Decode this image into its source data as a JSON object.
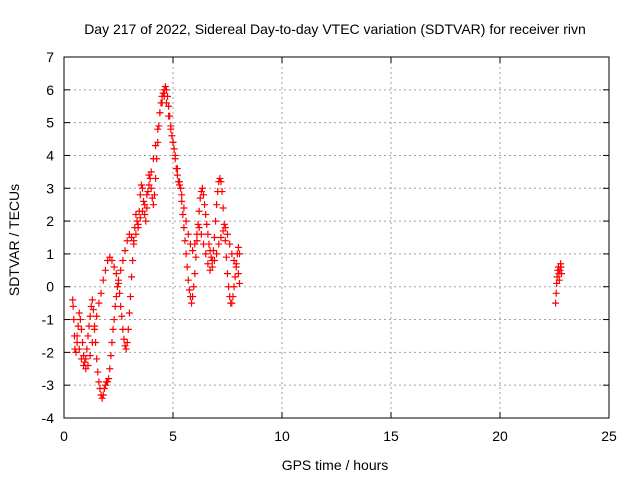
{
  "chart_data": {
    "type": "scatter",
    "title": "Day 217 of 2022, Sidereal Day-to-day VTEC variation (SDTVAR) for receiver rivn",
    "xlabel": "GPS time / hours",
    "ylabel": "SDTVAR / TECUs",
    "xlim": [
      0,
      25
    ],
    "ylim": [
      -4,
      7
    ],
    "x_ticks": [
      "0",
      "5",
      "10",
      "15",
      "20",
      "25"
    ],
    "x_tick_values": [
      0,
      5,
      10,
      15,
      20,
      25
    ],
    "y_ticks": [
      "-4",
      "-3",
      "-2",
      "-1",
      "0",
      "1",
      "2",
      "3",
      "4",
      "5",
      "6",
      "7"
    ],
    "y_tick_values": [
      -4,
      -3,
      -2,
      -1,
      0,
      1,
      2,
      3,
      4,
      5,
      6,
      7
    ],
    "grid": true,
    "marker": "plus",
    "color": "#ff0000",
    "series": [
      {
        "points": [
          [
            0.4,
            -0.4
          ],
          [
            0.42,
            -0.6
          ],
          [
            0.45,
            -1.0
          ],
          [
            0.48,
            -1.5
          ],
          [
            0.5,
            -1.9
          ],
          [
            0.55,
            -2.0
          ],
          [
            0.6,
            -1.7
          ],
          [
            0.65,
            -1.2
          ],
          [
            0.7,
            -0.8
          ],
          [
            0.75,
            -1.0
          ],
          [
            0.8,
            -1.3
          ],
          [
            0.85,
            -1.7
          ],
          [
            0.9,
            -2.1
          ],
          [
            0.95,
            -2.3
          ],
          [
            1.0,
            -2.2
          ],
          [
            1.05,
            -1.9
          ],
          [
            1.1,
            -1.5
          ],
          [
            1.15,
            -1.2
          ],
          [
            1.2,
            -0.9
          ],
          [
            1.25,
            -0.6
          ],
          [
            1.3,
            -0.4
          ],
          [
            1.35,
            -0.7
          ],
          [
            1.4,
            -1.2
          ],
          [
            1.45,
            -1.7
          ],
          [
            1.5,
            -2.2
          ],
          [
            1.55,
            -2.6
          ],
          [
            1.6,
            -2.9
          ],
          [
            1.65,
            -3.1
          ],
          [
            1.7,
            -3.3
          ],
          [
            1.75,
            -3.4
          ],
          [
            1.8,
            -3.3
          ],
          [
            1.85,
            -3.1
          ],
          [
            1.9,
            -3.0
          ],
          [
            1.95,
            -2.9
          ],
          [
            2.0,
            -2.9
          ],
          [
            2.05,
            -2.8
          ],
          [
            2.1,
            -2.5
          ],
          [
            2.15,
            -2.1
          ],
          [
            2.2,
            -1.7
          ],
          [
            2.25,
            -1.3
          ],
          [
            2.3,
            -1.0
          ],
          [
            2.35,
            -0.6
          ],
          [
            2.4,
            -0.3
          ],
          [
            2.45,
            0.0
          ],
          [
            2.5,
            0.1
          ],
          [
            2.55,
            -0.2
          ],
          [
            2.6,
            -0.6
          ],
          [
            2.65,
            -0.9
          ],
          [
            2.7,
            -1.3
          ],
          [
            2.75,
            -1.6
          ],
          [
            2.8,
            -1.8
          ],
          [
            2.85,
            -1.9
          ],
          [
            2.9,
            -1.7
          ],
          [
            2.95,
            -1.3
          ],
          [
            3.0,
            -0.8
          ],
          [
            3.05,
            -0.3
          ],
          [
            3.1,
            0.3
          ],
          [
            3.15,
            0.8
          ],
          [
            3.2,
            1.3
          ],
          [
            3.25,
            1.8
          ],
          [
            3.3,
            2.2
          ],
          [
            3.35,
            2.0
          ],
          [
            3.4,
            1.8
          ],
          [
            3.45,
            2.3
          ],
          [
            3.5,
            2.8
          ],
          [
            3.55,
            3.1
          ],
          [
            3.6,
            3.0
          ],
          [
            3.65,
            2.6
          ],
          [
            3.7,
            2.2
          ],
          [
            3.75,
            2.0
          ],
          [
            3.8,
            2.4
          ],
          [
            3.85,
            2.9
          ],
          [
            3.9,
            3.4
          ],
          [
            3.95,
            3.3
          ],
          [
            4.0,
            3.0
          ],
          [
            4.05,
            2.7
          ],
          [
            4.1,
            2.5
          ],
          [
            4.15,
            2.8
          ],
          [
            4.2,
            3.3
          ],
          [
            4.25,
            3.9
          ],
          [
            4.3,
            4.4
          ],
          [
            4.35,
            4.9
          ],
          [
            4.4,
            5.3
          ],
          [
            4.45,
            5.6
          ],
          [
            4.5,
            5.8
          ],
          [
            4.55,
            5.9
          ],
          [
            4.6,
            6.0
          ],
          [
            4.65,
            6.1
          ],
          [
            4.7,
            6.0
          ],
          [
            4.75,
            5.8
          ],
          [
            4.8,
            5.5
          ],
          [
            4.85,
            5.2
          ],
          [
            4.9,
            4.9
          ],
          [
            4.95,
            4.6
          ],
          [
            5.0,
            4.4
          ],
          [
            5.05,
            4.2
          ],
          [
            5.1,
            3.9
          ],
          [
            5.15,
            3.6
          ],
          [
            5.2,
            3.4
          ],
          [
            5.25,
            3.2
          ],
          [
            5.3,
            3.1
          ],
          [
            5.35,
            3.0
          ],
          [
            5.4,
            2.6
          ],
          [
            5.45,
            2.2
          ],
          [
            5.5,
            1.8
          ],
          [
            5.55,
            1.4
          ],
          [
            5.6,
            1.0
          ],
          [
            5.65,
            0.6
          ],
          [
            5.7,
            0.2
          ],
          [
            5.75,
            -0.1
          ],
          [
            5.8,
            -0.3
          ],
          [
            5.85,
            -0.5
          ],
          [
            5.9,
            -0.3
          ],
          [
            5.95,
            0.0
          ],
          [
            6.0,
            0.4
          ],
          [
            6.05,
            0.9
          ],
          [
            6.1,
            1.4
          ],
          [
            6.15,
            1.9
          ],
          [
            6.2,
            2.3
          ],
          [
            6.25,
            2.7
          ],
          [
            6.3,
            2.9
          ],
          [
            6.35,
            3.0
          ],
          [
            6.4,
            2.8
          ],
          [
            6.45,
            2.5
          ],
          [
            6.5,
            2.2
          ],
          [
            6.55,
            1.9
          ],
          [
            6.6,
            1.6
          ],
          [
            6.65,
            1.3
          ],
          [
            6.7,
            1.1
          ],
          [
            6.75,
            0.9
          ],
          [
            6.8,
            0.8
          ],
          [
            6.85,
            1.1
          ],
          [
            6.9,
            1.5
          ],
          [
            6.95,
            2.0
          ],
          [
            7.0,
            2.5
          ],
          [
            7.05,
            2.9
          ],
          [
            7.1,
            3.2
          ],
          [
            7.15,
            3.3
          ],
          [
            7.2,
            3.2
          ],
          [
            7.25,
            2.9
          ],
          [
            7.3,
            2.4
          ],
          [
            7.35,
            1.9
          ],
          [
            7.4,
            1.4
          ],
          [
            7.45,
            0.9
          ],
          [
            7.5,
            0.4
          ],
          [
            7.55,
            0.0
          ],
          [
            7.6,
            -0.3
          ],
          [
            7.65,
            -0.5
          ],
          [
            7.7,
            -0.5
          ],
          [
            7.75,
            -0.3
          ],
          [
            7.8,
            0.0
          ],
          [
            7.85,
            0.3
          ],
          [
            7.9,
            0.7
          ],
          [
            7.95,
            1.0
          ],
          [
            8.0,
            1.2
          ],
          [
            8.05,
            1.0
          ],
          [
            8.05,
            0.1
          ],
          [
            0.6,
            -1.5
          ],
          [
            0.7,
            -1.9
          ],
          [
            0.8,
            -2.2
          ],
          [
            0.9,
            -2.4
          ],
          [
            1.0,
            -2.5
          ],
          [
            1.1,
            -2.4
          ],
          [
            1.2,
            -2.1
          ],
          [
            1.3,
            -1.7
          ],
          [
            1.4,
            -1.3
          ],
          [
            1.5,
            -0.9
          ],
          [
            1.6,
            -0.5
          ],
          [
            1.7,
            -0.2
          ],
          [
            1.8,
            0.2
          ],
          [
            1.9,
            0.5
          ],
          [
            2.0,
            0.8
          ],
          [
            2.1,
            0.9
          ],
          [
            2.2,
            0.8
          ],
          [
            2.3,
            0.6
          ],
          [
            2.4,
            0.4
          ],
          [
            2.5,
            0.2
          ],
          [
            2.6,
            0.5
          ],
          [
            2.7,
            0.8
          ],
          [
            2.8,
            1.1
          ],
          [
            2.9,
            1.4
          ],
          [
            3.0,
            1.6
          ],
          [
            3.1,
            1.5
          ],
          [
            3.2,
            1.4
          ],
          [
            3.3,
            1.6
          ],
          [
            3.4,
            1.9
          ],
          [
            3.5,
            2.1
          ],
          [
            3.6,
            2.3
          ],
          [
            3.7,
            2.5
          ],
          [
            3.8,
            2.8
          ],
          [
            3.9,
            3.1
          ],
          [
            4.0,
            3.5
          ],
          [
            4.1,
            3.9
          ],
          [
            4.2,
            4.3
          ],
          [
            4.3,
            4.8
          ],
          [
            4.4,
            5.3
          ],
          [
            4.5,
            5.6
          ],
          [
            4.6,
            5.8
          ],
          [
            4.7,
            5.6
          ],
          [
            4.8,
            5.2
          ],
          [
            4.9,
            4.8
          ],
          [
            5.0,
            4.4
          ],
          [
            5.1,
            4.0
          ],
          [
            5.2,
            3.6
          ],
          [
            5.3,
            3.2
          ],
          [
            5.4,
            2.8
          ],
          [
            5.5,
            2.4
          ],
          [
            5.6,
            2.0
          ],
          [
            5.7,
            1.6
          ],
          [
            5.8,
            1.3
          ],
          [
            5.9,
            1.1
          ],
          [
            6.0,
            1.3
          ],
          [
            6.1,
            1.6
          ],
          [
            6.2,
            1.8
          ],
          [
            6.3,
            1.6
          ],
          [
            6.4,
            1.3
          ],
          [
            6.5,
            1.0
          ],
          [
            6.6,
            0.7
          ],
          [
            6.7,
            0.5
          ],
          [
            6.8,
            0.6
          ],
          [
            6.9,
            0.8
          ],
          [
            7.0,
            1.0
          ],
          [
            7.1,
            1.3
          ],
          [
            7.2,
            1.5
          ],
          [
            7.3,
            1.7
          ],
          [
            7.4,
            1.8
          ],
          [
            7.5,
            1.6
          ],
          [
            7.6,
            1.3
          ],
          [
            7.7,
            1.0
          ],
          [
            7.8,
            0.8
          ],
          [
            7.9,
            0.6
          ],
          [
            8.0,
            0.4
          ],
          [
            22.55,
            -0.5
          ],
          [
            22.58,
            -0.2
          ],
          [
            22.6,
            0.1
          ],
          [
            22.62,
            0.3
          ],
          [
            22.65,
            0.5
          ],
          [
            22.68,
            0.6
          ],
          [
            22.7,
            0.4
          ],
          [
            22.72,
            0.2
          ],
          [
            22.75,
            0.5
          ],
          [
            22.78,
            0.7
          ],
          [
            22.8,
            0.6
          ],
          [
            22.82,
            0.4
          ]
        ]
      }
    ]
  }
}
